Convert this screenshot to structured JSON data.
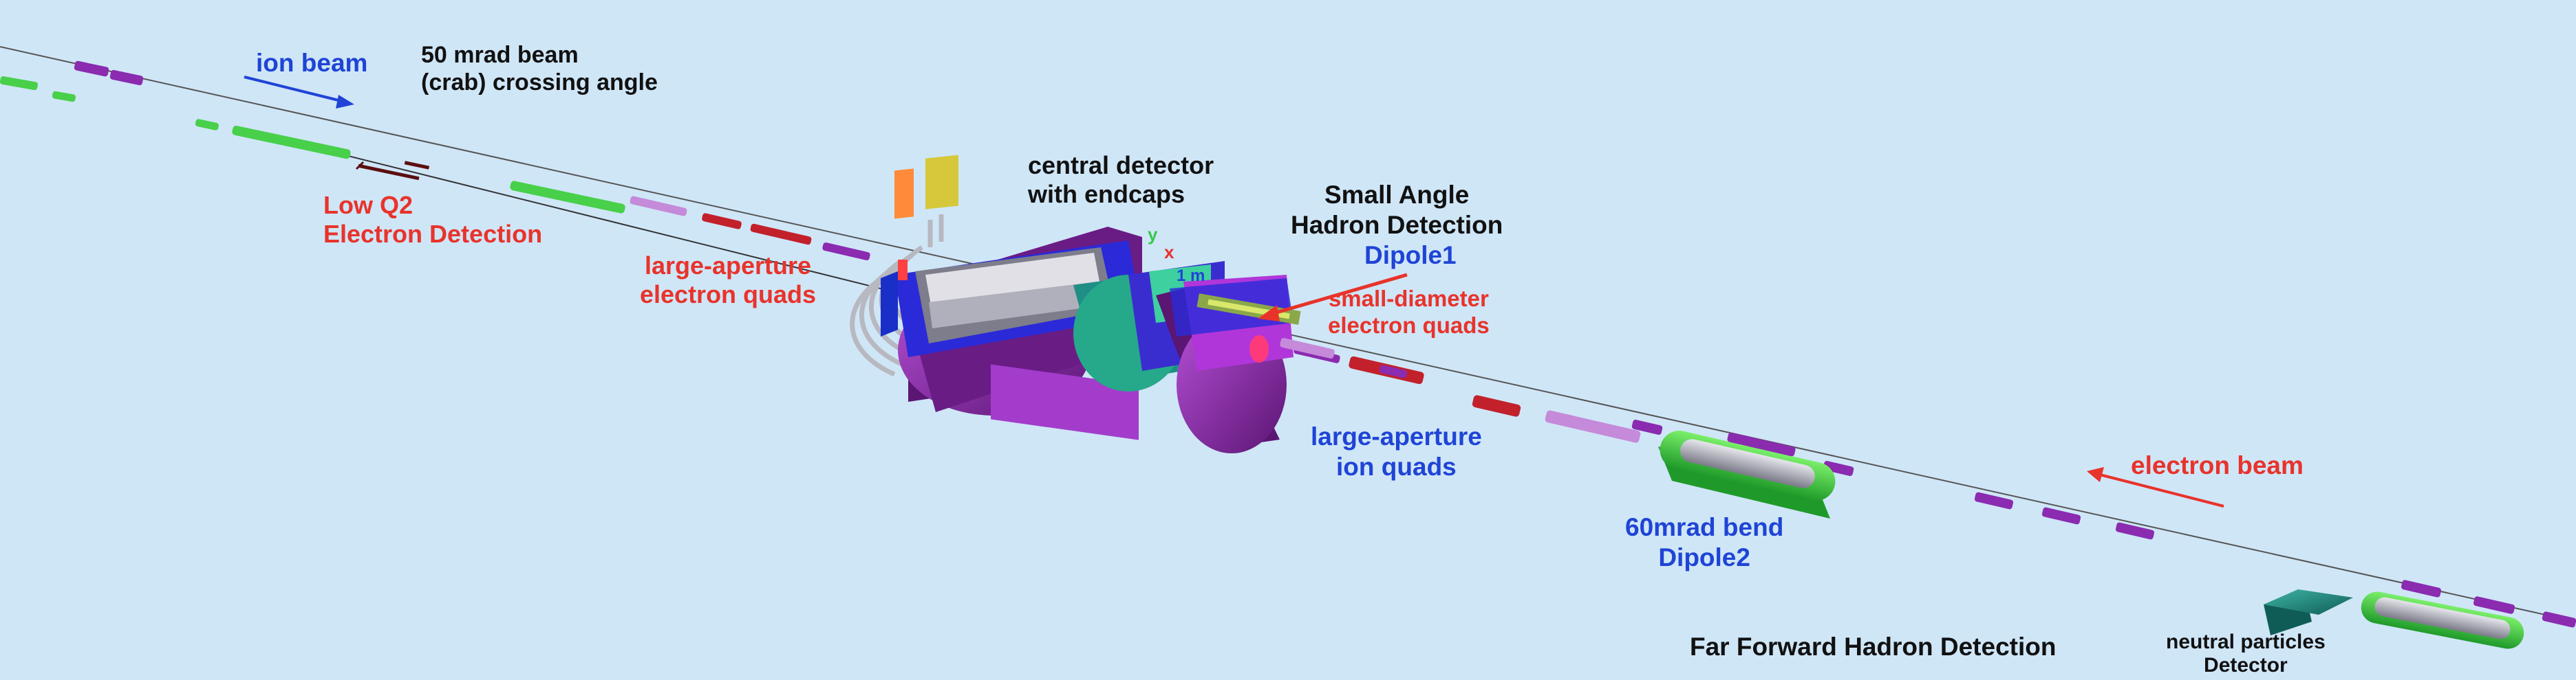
{
  "labels": {
    "ion_beam": "ion beam",
    "crossing_angle": [
      "50 mrad beam",
      "(crab) crossing angle"
    ],
    "low_q2": [
      "Low Q2",
      "Electron Detection"
    ],
    "large_aperture_electron_quads": [
      "large-aperture",
      "electron quads"
    ],
    "central_detector": [
      "central detector",
      "with endcaps"
    ],
    "small_angle_hadron": [
      "Small Angle",
      "Hadron Detection"
    ],
    "dipole1": "Dipole1",
    "small_diameter_electron_quads": [
      "small-diameter",
      "electron quads"
    ],
    "large_aperture_ion_quads": [
      "large-aperture",
      "ion quads"
    ],
    "dipole2": [
      "60mrad bend",
      "Dipole2"
    ],
    "electron_beam": "electron beam",
    "far_forward": "Far Forward Hadron Detection",
    "neutral_particles": [
      "neutral particles",
      "Detector"
    ]
  },
  "axes": {
    "y": "y",
    "x": "x",
    "scale": "1 m"
  },
  "colors": {
    "background": "#cfe6f7",
    "black_label": "#111111",
    "red_label": "#e8332b",
    "blue_label": "#1f44d6",
    "magnet_purple": "#8a2bb0",
    "magnet_green": "#48d04a",
    "magnet_red": "#c2212b",
    "detector_teal": "#1f8f86"
  }
}
